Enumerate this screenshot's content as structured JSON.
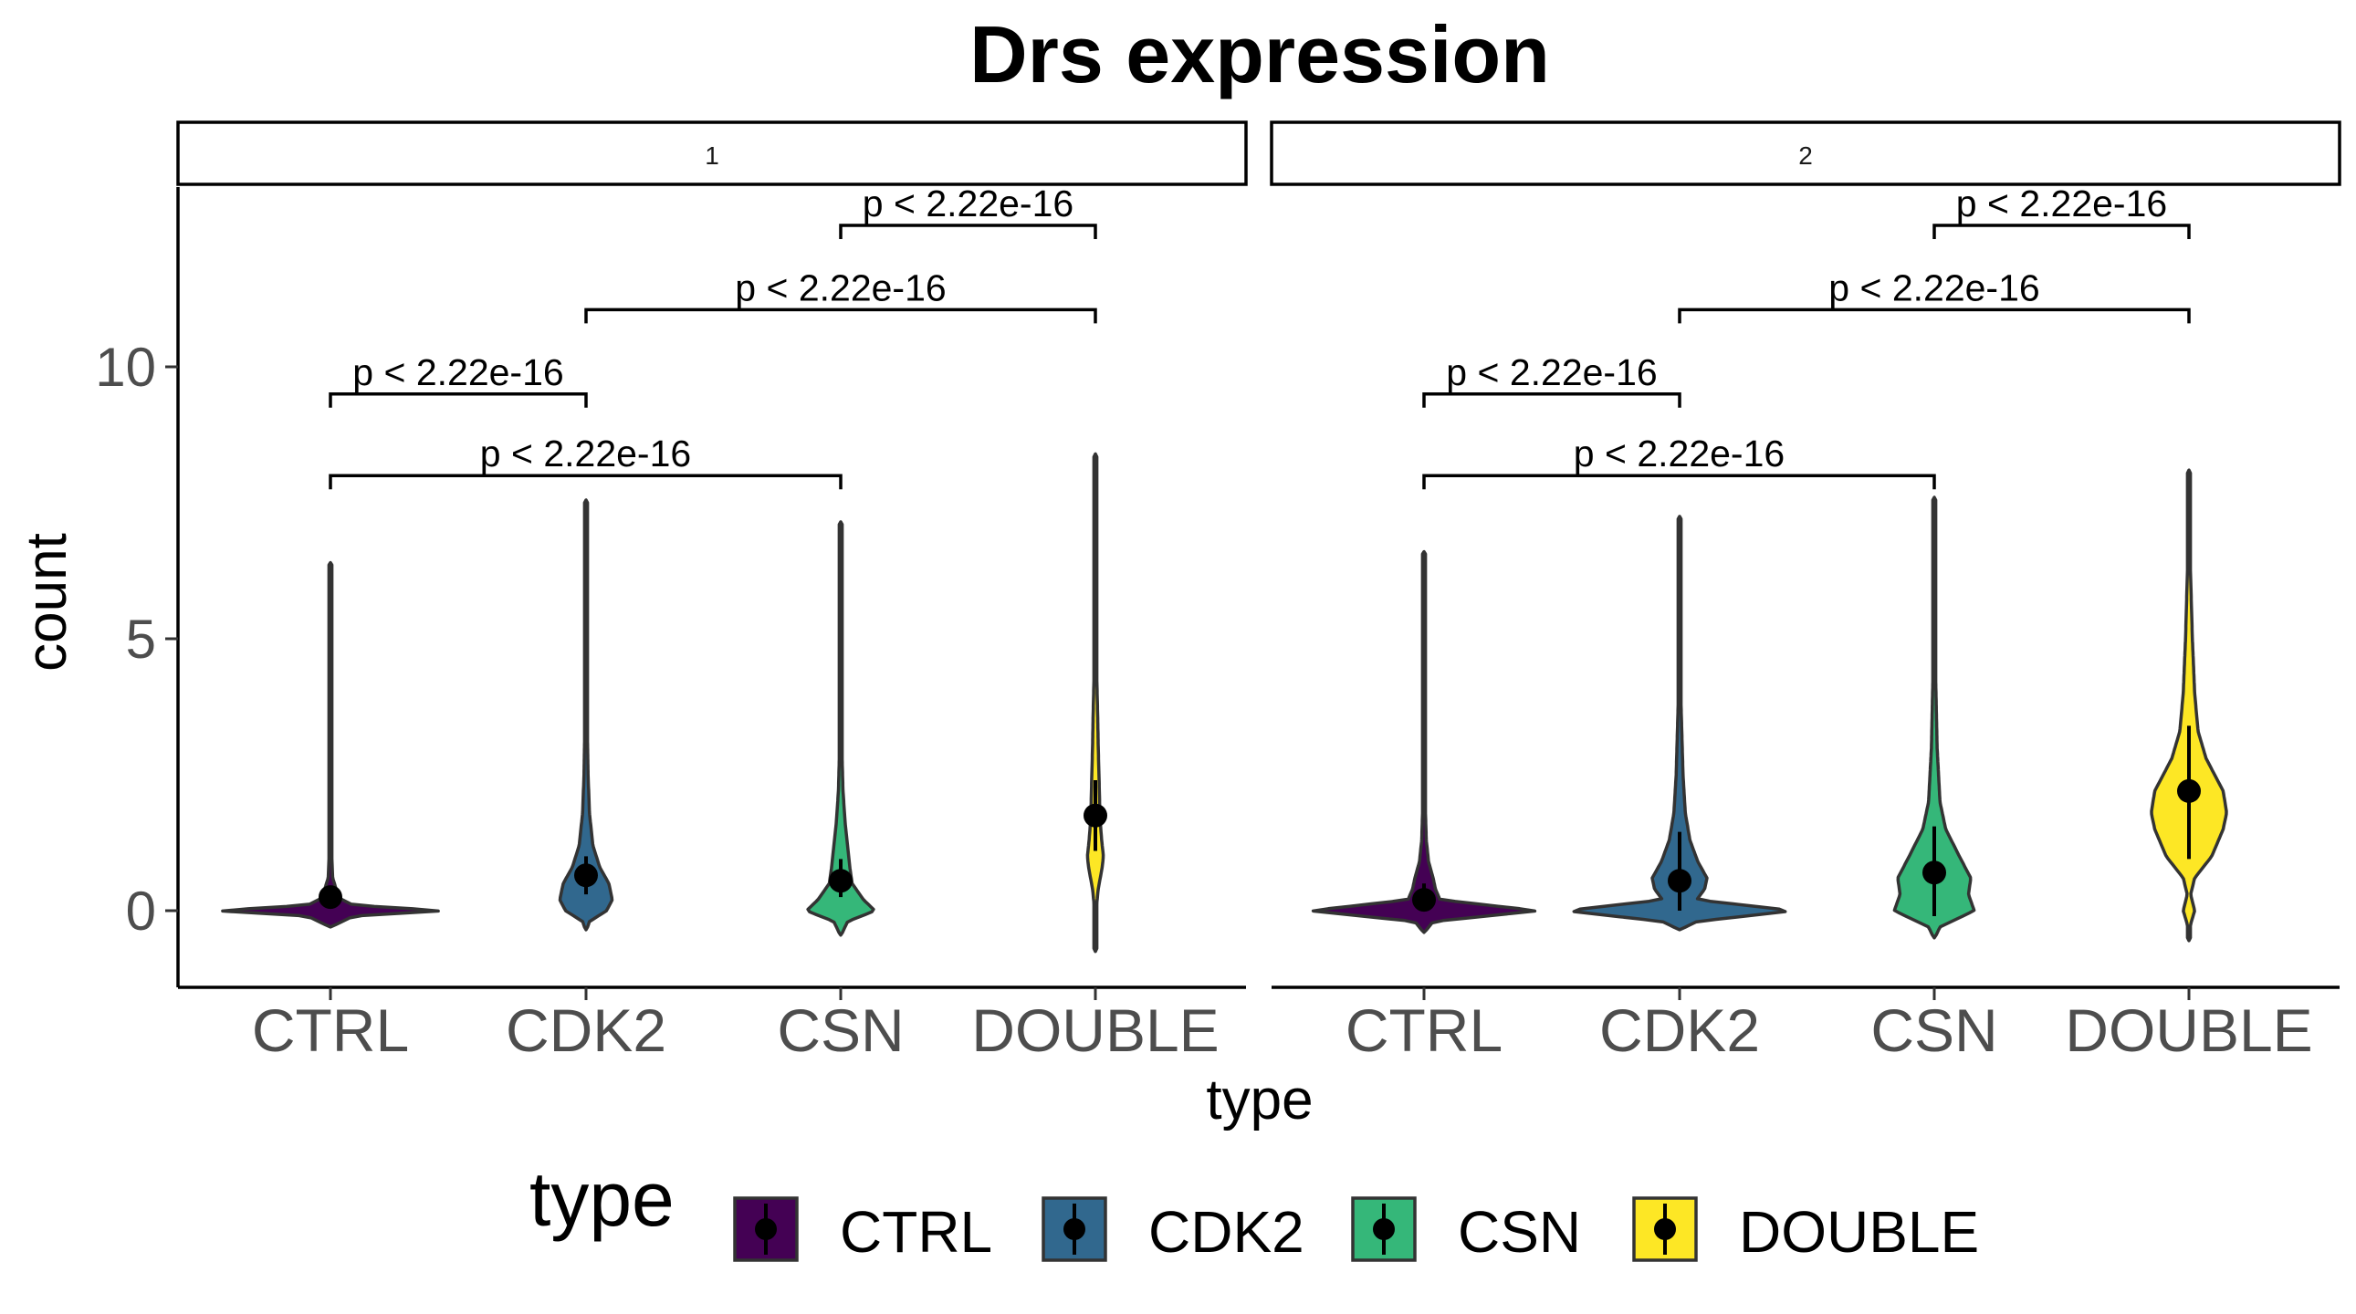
{
  "chart_data": {
    "type": "violin",
    "title": "Drs expression",
    "xlabel": "type",
    "ylabel": "count",
    "categories": [
      "CTRL",
      "CDK2",
      "CSN",
      "DOUBLE"
    ],
    "yticks": [
      "0",
      "5",
      "10"
    ],
    "ylim": [
      -1.4,
      13.1
    ],
    "colors": {
      "CTRL": "#440154",
      "CDK2": "#31688E",
      "CSN": "#35B779",
      "DOUBLE": "#FDE725"
    },
    "legend": {
      "title": "type",
      "position": "bottom",
      "items": [
        "CTRL",
        "CDK2",
        "CSN",
        "DOUBLE"
      ]
    },
    "facets": [
      {
        "label": "1",
        "violins": [
          {
            "type": "CTRL",
            "min": -0.3,
            "max": 6.4,
            "mean": 0.25,
            "sd_low": 0.1,
            "sd_high": 0.45,
            "profile": [
              [
                -0.3,
                0.004
              ],
              [
                -0.1,
                0.2
              ],
              [
                0.0,
                1.0
              ],
              [
                0.1,
                0.2
              ],
              [
                0.25,
                0.06
              ],
              [
                0.4,
                0.05
              ],
              [
                0.6,
                0.02
              ],
              [
                1.0,
                0.012
              ],
              [
                2.0,
                0.007
              ],
              [
                3.5,
                0.006
              ],
              [
                4.5,
                0.003
              ],
              [
                6.4,
                0.0
              ]
            ]
          },
          {
            "type": "CDK2",
            "min": -0.35,
            "max": 7.55,
            "mean": 0.65,
            "sd_low": 0.3,
            "sd_high": 1.0,
            "profile": [
              [
                -0.35,
                0.005
              ],
              [
                -0.2,
                0.03
              ],
              [
                0.0,
                0.18
              ],
              [
                0.2,
                0.23
              ],
              [
                0.5,
                0.2
              ],
              [
                0.8,
                0.12
              ],
              [
                1.2,
                0.06
              ],
              [
                1.8,
                0.03
              ],
              [
                2.5,
                0.018
              ],
              [
                3.5,
                0.01
              ],
              [
                5.0,
                0.006
              ],
              [
                7.55,
                0.0
              ]
            ]
          },
          {
            "type": "CSN",
            "min": -0.45,
            "max": 7.15,
            "mean": 0.55,
            "sd_low": 0.25,
            "sd_high": 0.95,
            "profile": [
              [
                -0.45,
                0.005
              ],
              [
                -0.2,
                0.06
              ],
              [
                0.0,
                0.3
              ],
              [
                0.2,
                0.2
              ],
              [
                0.5,
                0.1
              ],
              [
                0.8,
                0.08
              ],
              [
                1.2,
                0.06
              ],
              [
                1.6,
                0.04
              ],
              [
                2.2,
                0.02
              ],
              [
                3.0,
                0.01
              ],
              [
                5.0,
                0.006
              ],
              [
                7.15,
                0.0
              ]
            ]
          },
          {
            "type": "DOUBLE",
            "min": -0.75,
            "max": 8.4,
            "mean": 1.75,
            "sd_low": 1.1,
            "sd_high": 2.4,
            "profile": [
              [
                -0.75,
                0.003
              ],
              [
                0.0,
                0.006
              ],
              [
                0.4,
                0.025
              ],
              [
                0.8,
                0.06
              ],
              [
                1.0,
                0.07
              ],
              [
                1.3,
                0.055
              ],
              [
                1.7,
                0.04
              ],
              [
                2.2,
                0.035
              ],
              [
                3.0,
                0.025
              ],
              [
                3.6,
                0.02
              ],
              [
                4.5,
                0.01
              ],
              [
                6.0,
                0.006
              ],
              [
                8.4,
                0.0
              ]
            ]
          }
        ],
        "comparisons": [
          {
            "from": "CTRL",
            "to": "CSN",
            "y": 8.0,
            "label": "p < 2.22e-16"
          },
          {
            "from": "CTRL",
            "to": "CDK2",
            "y": 9.5,
            "label": "p < 2.22e-16"
          },
          {
            "from": "CDK2",
            "to": "DOUBLE",
            "y": 11.05,
            "label": "p < 2.22e-16"
          },
          {
            "from": "CSN",
            "to": "DOUBLE",
            "y": 12.6,
            "label": "p < 2.22e-16"
          }
        ]
      },
      {
        "label": "2",
        "violins": [
          {
            "type": "CTRL",
            "min": -0.4,
            "max": 6.6,
            "mean": 0.2,
            "sd_low": 0.0,
            "sd_high": 0.5,
            "profile": [
              [
                -0.4,
                0.004
              ],
              [
                -0.2,
                0.08
              ],
              [
                0.0,
                1.0
              ],
              [
                0.2,
                0.14
              ],
              [
                0.4,
                0.1
              ],
              [
                0.6,
                0.08
              ],
              [
                0.9,
                0.04
              ],
              [
                1.3,
                0.02
              ],
              [
                2.0,
                0.01
              ],
              [
                4.0,
                0.006
              ],
              [
                6.6,
                0.0
              ]
            ]
          },
          {
            "type": "CDK2",
            "min": -0.35,
            "max": 7.25,
            "mean": 0.55,
            "sd_low": 0.0,
            "sd_high": 1.45,
            "profile": [
              [
                -0.35,
                0.005
              ],
              [
                -0.2,
                0.15
              ],
              [
                0.0,
                1.0
              ],
              [
                0.2,
                0.15
              ],
              [
                0.4,
                0.22
              ],
              [
                0.6,
                0.24
              ],
              [
                0.9,
                0.16
              ],
              [
                1.3,
                0.09
              ],
              [
                1.8,
                0.05
              ],
              [
                2.5,
                0.03
              ],
              [
                4.0,
                0.01
              ],
              [
                7.25,
                0.0
              ]
            ]
          },
          {
            "type": "CSN",
            "min": -0.5,
            "max": 7.6,
            "mean": 0.7,
            "sd_low": -0.1,
            "sd_high": 1.55,
            "profile": [
              [
                -0.5,
                0.005
              ],
              [
                -0.3,
                0.05
              ],
              [
                0.0,
                0.35
              ],
              [
                0.3,
                0.3
              ],
              [
                0.6,
                0.32
              ],
              [
                1.0,
                0.22
              ],
              [
                1.5,
                0.1
              ],
              [
                2.0,
                0.05
              ],
              [
                3.0,
                0.025
              ],
              [
                4.5,
                0.01
              ],
              [
                7.6,
                0.0
              ]
            ]
          },
          {
            "type": "DOUBLE",
            "min": -0.55,
            "max": 8.1,
            "mean": 2.2,
            "sd_low": 0.95,
            "sd_high": 3.4,
            "profile": [
              [
                -0.55,
                0.004
              ],
              [
                -0.3,
                0.008
              ],
              [
                0.0,
                0.05
              ],
              [
                0.3,
                0.015
              ],
              [
                0.6,
                0.05
              ],
              [
                1.0,
                0.2
              ],
              [
                1.5,
                0.3
              ],
              [
                1.8,
                0.33
              ],
              [
                2.2,
                0.3
              ],
              [
                2.8,
                0.15
              ],
              [
                3.3,
                0.08
              ],
              [
                4.0,
                0.05
              ],
              [
                5.0,
                0.03
              ],
              [
                6.5,
                0.01
              ],
              [
                8.1,
                0.0
              ]
            ]
          }
        ],
        "comparisons": [
          {
            "from": "CTRL",
            "to": "CSN",
            "y": 8.0,
            "label": "p < 2.22e-16"
          },
          {
            "from": "CTRL",
            "to": "CDK2",
            "y": 9.5,
            "label": "p < 2.22e-16"
          },
          {
            "from": "CDK2",
            "to": "DOUBLE",
            "y": 11.05,
            "label": "p < 2.22e-16"
          },
          {
            "from": "CSN",
            "to": "DOUBLE",
            "y": 12.6,
            "label": "p < 2.22e-16"
          }
        ]
      }
    ]
  }
}
